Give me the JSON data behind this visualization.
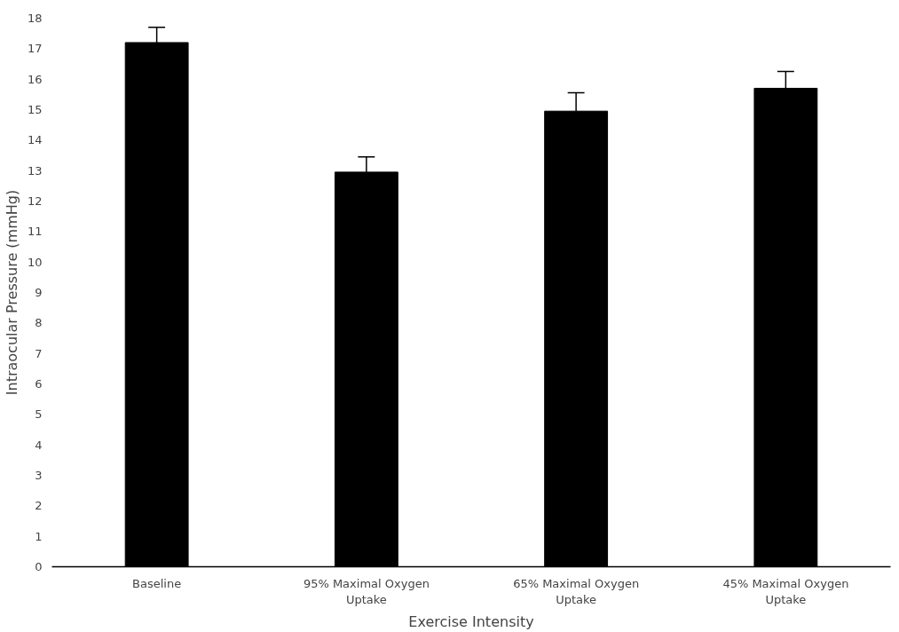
{
  "chart_data": {
    "type": "bar",
    "xlabel": "Exercise Intensity",
    "ylabel": "Intraocular Pressure (mmHg)",
    "categories": [
      "Baseline",
      "95% Maximal Oxygen Uptake",
      "65% Maximal Oxygen Uptake",
      "45% Maximal Oxygen Uptake"
    ],
    "values": [
      17.2,
      12.95,
      14.95,
      15.7
    ],
    "errors": [
      [
        17.2,
        17.7
      ],
      [
        12.95,
        13.45
      ],
      [
        14.95,
        15.55
      ],
      [
        15.7,
        16.25
      ]
    ],
    "color": "#000000",
    "ylim": [
      0,
      18
    ],
    "yticks": [
      0,
      1,
      2,
      3,
      4,
      5,
      6,
      7,
      8,
      9,
      10,
      11,
      12,
      13,
      14,
      15,
      16,
      17,
      18
    ],
    "grid": false
  }
}
